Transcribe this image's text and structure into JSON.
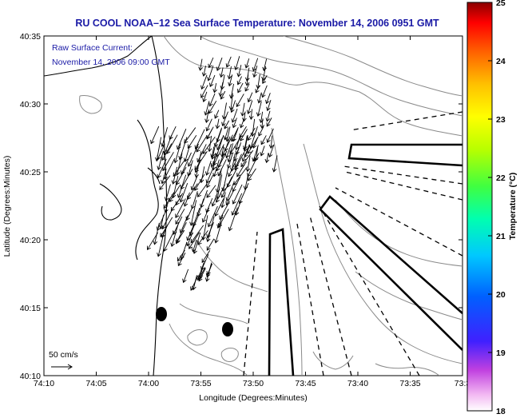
{
  "title": "RU COOL  NOAA–12  Sea Surface Temperature:  November 14, 2006 0951 GMT",
  "annotation": {
    "line1": "Raw Surface Current:",
    "line2": "November 14, 2006 09:00 GMT"
  },
  "axes": {
    "xlabel": "Longitude (Degrees:Minutes)",
    "ylabel": "Latitude (Degrees:Minutes)",
    "x_ticks": [
      "74:10",
      "74:05",
      "74:00",
      "73:55",
      "73:50",
      "73:45",
      "73:40",
      "73:35",
      "73:3"
    ],
    "y_ticks": [
      "40:35",
      "40:30",
      "40:25",
      "40:20",
      "40:15",
      "40:10"
    ]
  },
  "scale_label": "50 cm/s",
  "colorbar": {
    "label": "Temperature (°C)",
    "ticks": [
      "25",
      "24",
      "23",
      "22",
      "21",
      "20",
      "19",
      "18"
    ],
    "min": 18,
    "max": 25
  },
  "colors": {
    "title": "#1a1aa6",
    "annotation": "#1a1aa6",
    "contour": "#8a8a8a",
    "coast": "#000000"
  }
}
